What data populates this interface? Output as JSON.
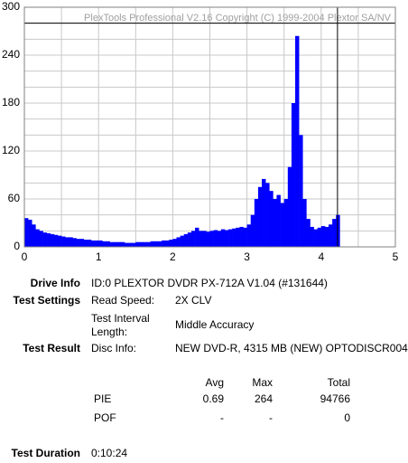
{
  "chart_data": {
    "type": "bar",
    "watermark": "PlexTools Professional V2.16 Copyright (C) 1999-2004 Plextor SA/NV",
    "x": [
      0.0,
      0.05,
      0.1,
      0.15,
      0.2,
      0.25,
      0.3,
      0.35,
      0.4,
      0.45,
      0.5,
      0.55,
      0.6,
      0.65,
      0.7,
      0.75,
      0.8,
      0.85,
      0.9,
      0.95,
      1.0,
      1.05,
      1.1,
      1.15,
      1.2,
      1.25,
      1.3,
      1.35,
      1.4,
      1.45,
      1.5,
      1.55,
      1.6,
      1.65,
      1.7,
      1.75,
      1.8,
      1.85,
      1.9,
      1.95,
      2.0,
      2.05,
      2.1,
      2.15,
      2.2,
      2.25,
      2.3,
      2.35,
      2.4,
      2.45,
      2.5,
      2.55,
      2.6,
      2.65,
      2.7,
      2.75,
      2.8,
      2.85,
      2.9,
      2.95,
      3.0,
      3.05,
      3.1,
      3.15,
      3.2,
      3.25,
      3.3,
      3.35,
      3.4,
      3.45,
      3.5,
      3.55,
      3.6,
      3.65,
      3.7,
      3.75,
      3.8,
      3.85,
      3.9,
      3.95,
      4.0,
      4.05,
      4.1,
      4.15,
      4.2
    ],
    "values": [
      36,
      34,
      28,
      22,
      20,
      18,
      17,
      16,
      15,
      14,
      13,
      12,
      12,
      11,
      10,
      10,
      9,
      9,
      8,
      8,
      8,
      7,
      7,
      6,
      6,
      6,
      6,
      5,
      5,
      5,
      6,
      6,
      6,
      6,
      7,
      7,
      7,
      8,
      8,
      9,
      10,
      12,
      14,
      16,
      18,
      20,
      24,
      20,
      20,
      19,
      20,
      21,
      20,
      22,
      21,
      22,
      23,
      24,
      25,
      24,
      28,
      40,
      60,
      75,
      85,
      80,
      70,
      60,
      65,
      55,
      60,
      100,
      180,
      264,
      140,
      60,
      35,
      25,
      22,
      24,
      26,
      25,
      28,
      35,
      40
    ],
    "bar_width": 0.05,
    "color": "#0000ff",
    "xlim": [
      0,
      5
    ],
    "xticks": [
      0,
      1,
      2,
      3,
      4,
      5
    ],
    "ylim": [
      0,
      300
    ],
    "yticks": [
      0,
      60,
      120,
      180,
      240,
      300
    ],
    "grid": true,
    "x_grid_subdivisions": 2,
    "y_grid_subdivisions": 3,
    "hline": 280,
    "vline": 4.22
  },
  "info": {
    "drive": {
      "label": "Drive Info",
      "value": "ID:0 PLEXTOR DVDR PX-712A V1.04 (#131644)"
    },
    "settings": {
      "label": "Test Settings",
      "speed_label": "Read Speed:",
      "speed": "2X CLV",
      "interval_label": [
        "Test Interval",
        "Length:"
      ],
      "interval": "Middle Accuracy"
    },
    "result": {
      "label": "Test Result",
      "disc_label": "Disc Info:",
      "disc": "NEW DVD-R, 4315 MB (NEW) OPTODISCR004"
    },
    "stats": {
      "columns": [
        "Avg",
        "Max",
        "Total"
      ],
      "rows": [
        [
          "PIE",
          0.69,
          264,
          94766
        ],
        [
          "POF",
          "-",
          "-",
          0
        ]
      ]
    },
    "duration": {
      "label": "Test Duration",
      "value": "0:10:24"
    }
  }
}
